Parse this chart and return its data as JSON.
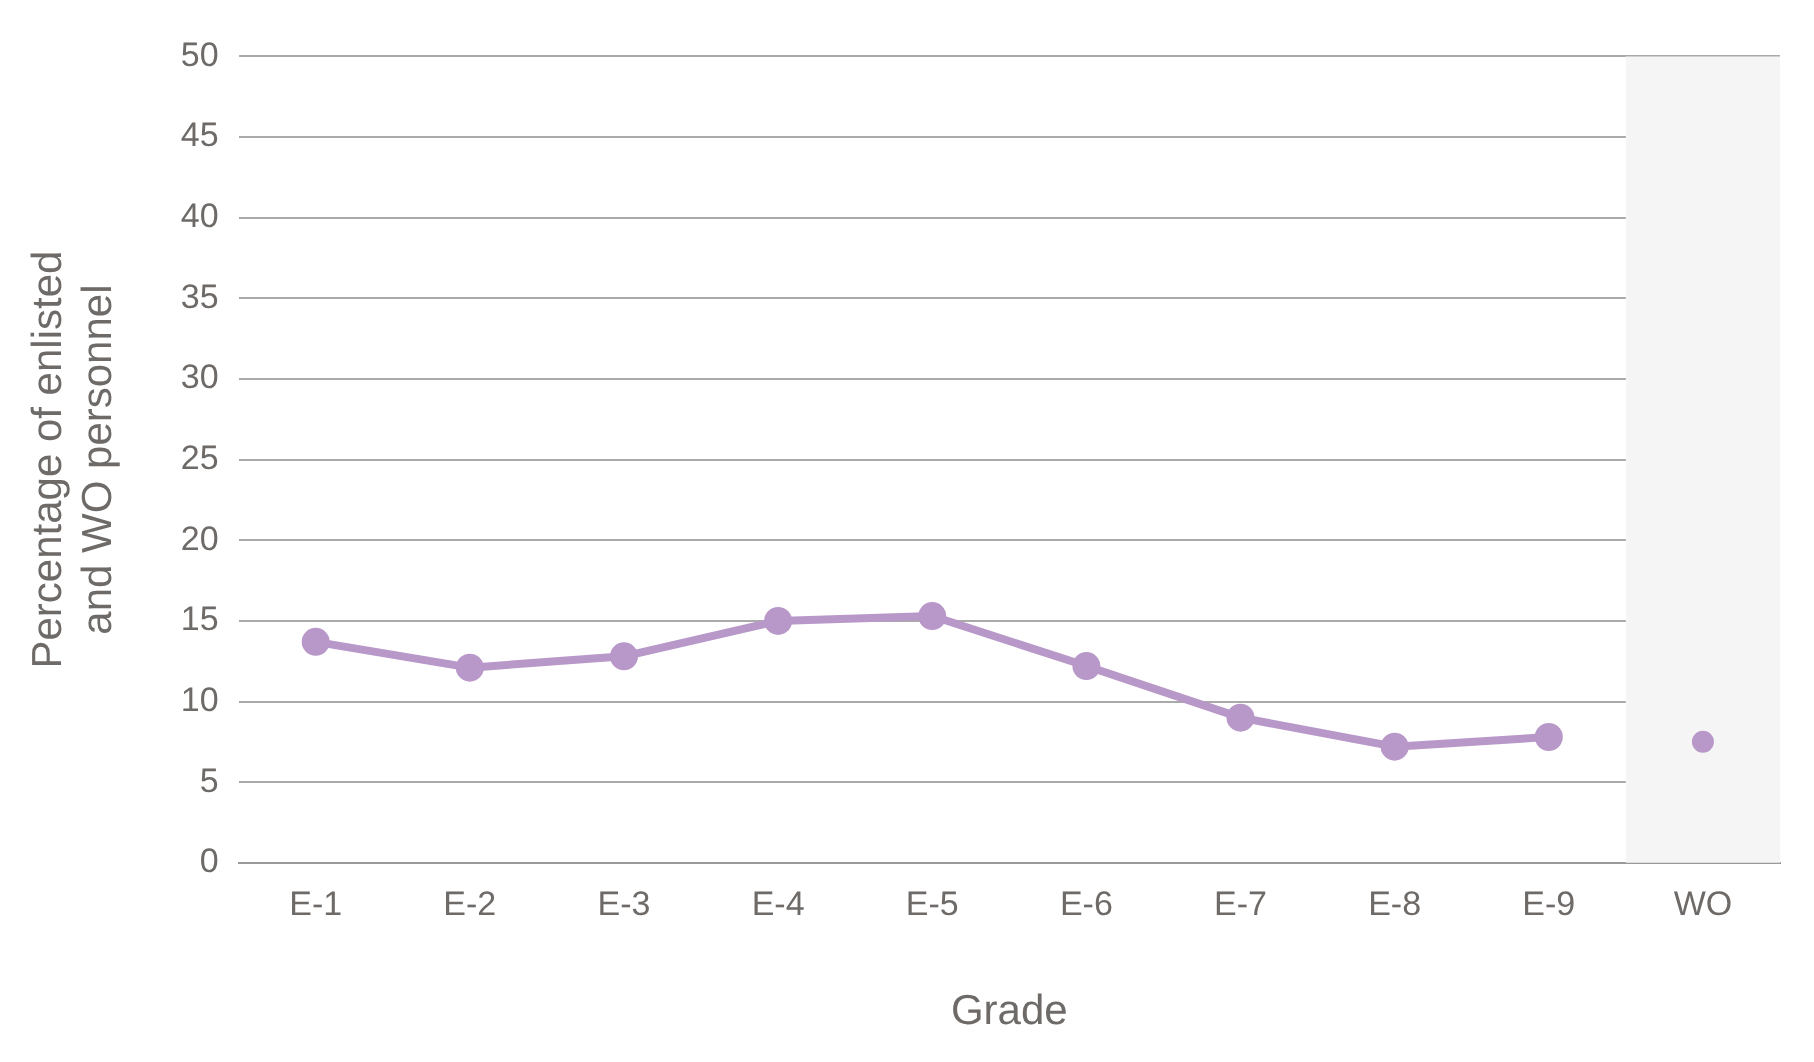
{
  "chart_data": {
    "type": "line",
    "xlabel": "Grade",
    "ylabel": "Percentage of enlisted\nand WO personnel",
    "categories": [
      "E-1",
      "E-2",
      "E-3",
      "E-4",
      "E-5",
      "E-6",
      "E-7",
      "E-8",
      "E-9",
      "WO"
    ],
    "series": [
      {
        "color": "#b898c8",
        "values": [
          13.7,
          12.1,
          12.8,
          15.0,
          15.3,
          12.2,
          9.0,
          7.2,
          7.8,
          null
        ]
      },
      {
        "type": "scatter",
        "color": "#b898c8",
        "x": [
          "WO"
        ],
        "values": [
          7.5
        ]
      }
    ],
    "bands": [
      {
        "axis": "x",
        "from": "WO",
        "to": "WO",
        "color": "#f5f5f5"
      }
    ],
    "ylim": [
      0,
      50
    ],
    "yticks": [
      0,
      5,
      10,
      15,
      20,
      25,
      30,
      35,
      40,
      45,
      50
    ],
    "grid": "y",
    "legend": false,
    "marker": "circle"
  }
}
